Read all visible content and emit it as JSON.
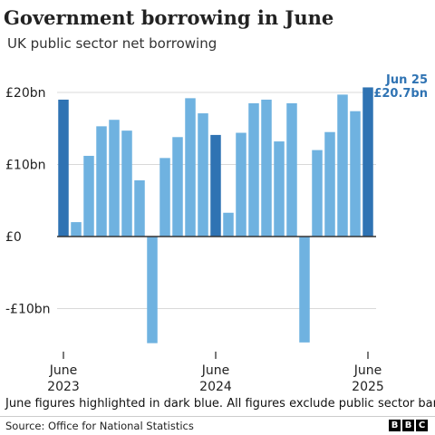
{
  "title": "Government borrowing in June",
  "subtitle": "UK public sector net borrowing",
  "footnote": "June figures highlighted in dark blue. All figures exclude public sector banks",
  "source": "Source: Office for National Statistics",
  "logo": [
    "B",
    "B",
    "C"
  ],
  "colors": {
    "june": "#2f73b3",
    "other": "#6fb2e0",
    "grid": "#d9d9d9",
    "axis": "#333333",
    "label_highlight": "#2f73b3"
  },
  "chart_data": {
    "type": "bar",
    "title": "Government borrowing in June",
    "subtitle": "UK public sector net borrowing",
    "xlabel": "",
    "ylabel": "",
    "ylim": [
      -15,
      20.7
    ],
    "y_ticks": [
      20,
      10,
      0,
      -10
    ],
    "y_tick_labels": [
      "£20bn",
      "£10bn",
      "£0",
      "-£10bn"
    ],
    "grid": true,
    "categories": [
      "Jun 2023",
      "Jul 2023",
      "Aug 2023",
      "Sep 2023",
      "Oct 2023",
      "Nov 2023",
      "Dec 2023",
      "Jan 2024",
      "Feb 2024",
      "Mar 2024",
      "Apr 2024",
      "May 2024",
      "Jun 2024",
      "Jul 2024",
      "Aug 2024",
      "Sep 2024",
      "Oct 2024",
      "Nov 2024",
      "Dec 2024",
      "Jan 2025",
      "Feb 2025",
      "Mar 2025",
      "Apr 2025",
      "May 2025",
      "Jun 2025"
    ],
    "values": [
      19.0,
      2.0,
      11.2,
      15.3,
      16.2,
      14.7,
      7.8,
      -14.8,
      10.9,
      13.8,
      19.2,
      17.1,
      14.1,
      3.3,
      14.4,
      18.5,
      19.0,
      13.2,
      18.5,
      -14.7,
      12.0,
      14.5,
      19.7,
      17.4,
      20.7
    ],
    "highlight_indices": [
      0,
      12,
      24
    ],
    "x_tick_indices": [
      0,
      12,
      24
    ],
    "x_tick_labels": [
      [
        "June",
        "2023"
      ],
      [
        "June",
        "2024"
      ],
      [
        "June",
        "2025"
      ]
    ],
    "annotation": {
      "index": 24,
      "lines": [
        "Jun 25",
        "£20.7bn"
      ]
    }
  }
}
